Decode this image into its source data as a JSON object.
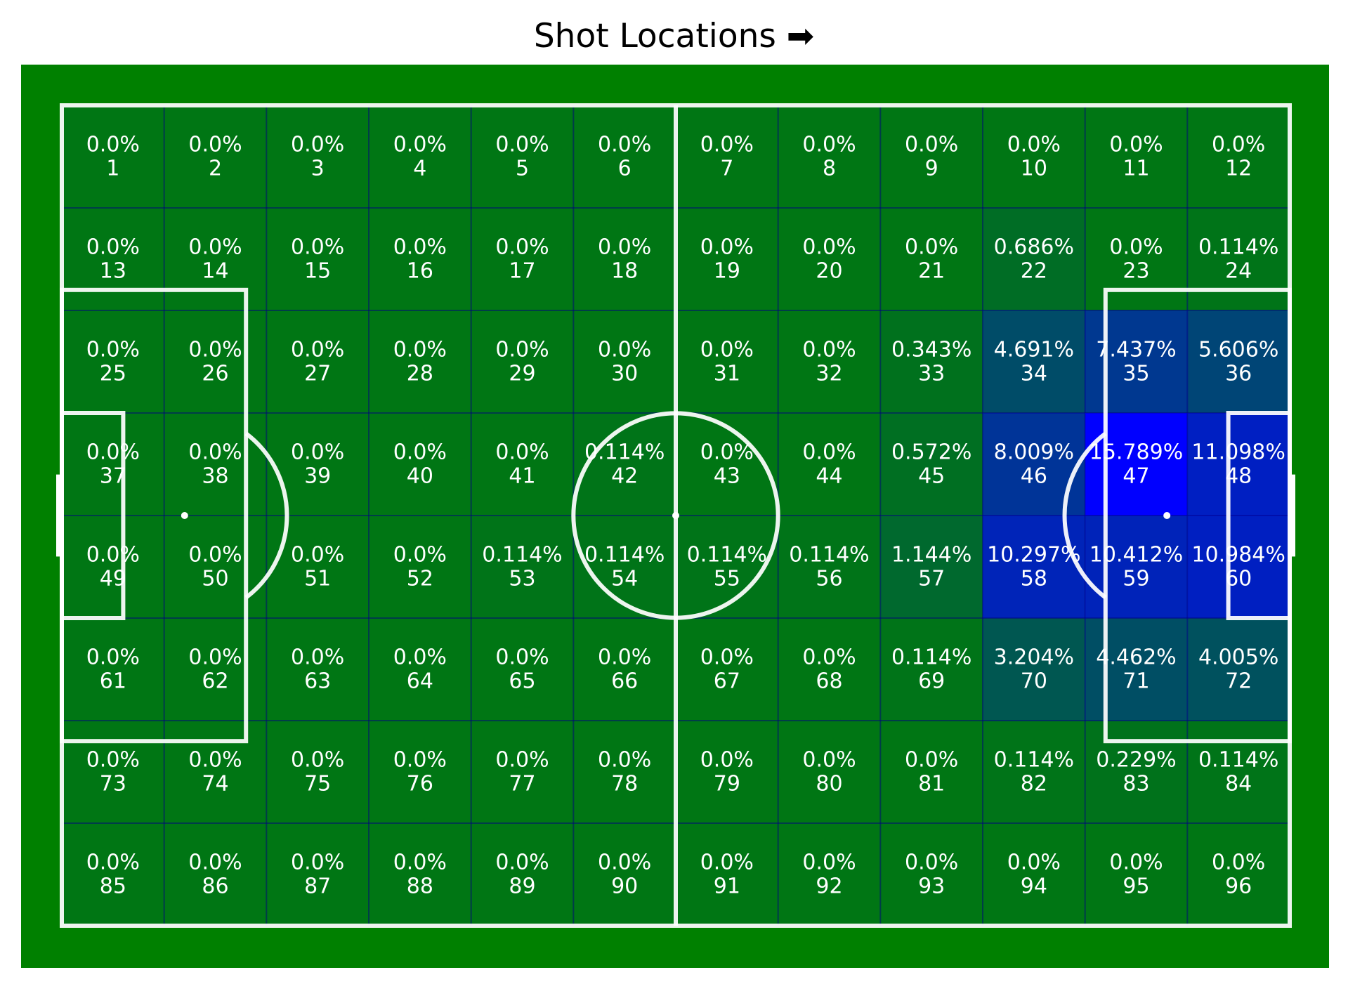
{
  "chart_data": {
    "type": "heatmap",
    "title": "Shot Locations ➡",
    "rows": 8,
    "cols": 12,
    "colors": {
      "pitch": "#008000",
      "lines": "#ffffff",
      "heat": "#0000ff"
    },
    "zones": [
      {
        "zone": "1",
        "pct": "0.0%"
      },
      {
        "zone": "2",
        "pct": "0.0%"
      },
      {
        "zone": "3",
        "pct": "0.0%"
      },
      {
        "zone": "4",
        "pct": "0.0%"
      },
      {
        "zone": "5",
        "pct": "0.0%"
      },
      {
        "zone": "6",
        "pct": "0.0%"
      },
      {
        "zone": "7",
        "pct": "0.0%"
      },
      {
        "zone": "8",
        "pct": "0.0%"
      },
      {
        "zone": "9",
        "pct": "0.0%"
      },
      {
        "zone": "10",
        "pct": "0.0%"
      },
      {
        "zone": "11",
        "pct": "0.0%"
      },
      {
        "zone": "12",
        "pct": "0.0%"
      },
      {
        "zone": "13",
        "pct": "0.0%"
      },
      {
        "zone": "14",
        "pct": "0.0%"
      },
      {
        "zone": "15",
        "pct": "0.0%"
      },
      {
        "zone": "16",
        "pct": "0.0%"
      },
      {
        "zone": "17",
        "pct": "0.0%"
      },
      {
        "zone": "18",
        "pct": "0.0%"
      },
      {
        "zone": "19",
        "pct": "0.0%"
      },
      {
        "zone": "20",
        "pct": "0.0%"
      },
      {
        "zone": "21",
        "pct": "0.0%"
      },
      {
        "zone": "22",
        "pct": "0.686%"
      },
      {
        "zone": "23",
        "pct": "0.0%"
      },
      {
        "zone": "24",
        "pct": "0.114%"
      },
      {
        "zone": "25",
        "pct": "0.0%"
      },
      {
        "zone": "26",
        "pct": "0.0%"
      },
      {
        "zone": "27",
        "pct": "0.0%"
      },
      {
        "zone": "28",
        "pct": "0.0%"
      },
      {
        "zone": "29",
        "pct": "0.0%"
      },
      {
        "zone": "30",
        "pct": "0.0%"
      },
      {
        "zone": "31",
        "pct": "0.0%"
      },
      {
        "zone": "32",
        "pct": "0.0%"
      },
      {
        "zone": "33",
        "pct": "0.343%"
      },
      {
        "zone": "34",
        "pct": "4.691%"
      },
      {
        "zone": "35",
        "pct": "7.437%"
      },
      {
        "zone": "36",
        "pct": "5.606%"
      },
      {
        "zone": "37",
        "pct": "0.0%"
      },
      {
        "zone": "38",
        "pct": "0.0%"
      },
      {
        "zone": "39",
        "pct": "0.0%"
      },
      {
        "zone": "40",
        "pct": "0.0%"
      },
      {
        "zone": "41",
        "pct": "0.0%"
      },
      {
        "zone": "42",
        "pct": "0.114%"
      },
      {
        "zone": "43",
        "pct": "0.0%"
      },
      {
        "zone": "44",
        "pct": "0.0%"
      },
      {
        "zone": "45",
        "pct": "0.572%"
      },
      {
        "zone": "46",
        "pct": "8.009%"
      },
      {
        "zone": "47",
        "pct": "15.789%"
      },
      {
        "zone": "48",
        "pct": "11.098%"
      },
      {
        "zone": "49",
        "pct": "0.0%"
      },
      {
        "zone": "50",
        "pct": "0.0%"
      },
      {
        "zone": "51",
        "pct": "0.0%"
      },
      {
        "zone": "52",
        "pct": "0.0%"
      },
      {
        "zone": "53",
        "pct": "0.114%"
      },
      {
        "zone": "54",
        "pct": "0.114%"
      },
      {
        "zone": "55",
        "pct": "0.114%"
      },
      {
        "zone": "56",
        "pct": "0.114%"
      },
      {
        "zone": "57",
        "pct": "1.144%"
      },
      {
        "zone": "58",
        "pct": "10.297%"
      },
      {
        "zone": "59",
        "pct": "10.412%"
      },
      {
        "zone": "60",
        "pct": "10.984%"
      },
      {
        "zone": "61",
        "pct": "0.0%"
      },
      {
        "zone": "62",
        "pct": "0.0%"
      },
      {
        "zone": "63",
        "pct": "0.0%"
      },
      {
        "zone": "64",
        "pct": "0.0%"
      },
      {
        "zone": "65",
        "pct": "0.0%"
      },
      {
        "zone": "66",
        "pct": "0.0%"
      },
      {
        "zone": "67",
        "pct": "0.0%"
      },
      {
        "zone": "68",
        "pct": "0.0%"
      },
      {
        "zone": "69",
        "pct": "0.114%"
      },
      {
        "zone": "70",
        "pct": "3.204%"
      },
      {
        "zone": "71",
        "pct": "4.462%"
      },
      {
        "zone": "72",
        "pct": "4.005%"
      },
      {
        "zone": "73",
        "pct": "0.0%"
      },
      {
        "zone": "74",
        "pct": "0.0%"
      },
      {
        "zone": "75",
        "pct": "0.0%"
      },
      {
        "zone": "76",
        "pct": "0.0%"
      },
      {
        "zone": "77",
        "pct": "0.0%"
      },
      {
        "zone": "78",
        "pct": "0.0%"
      },
      {
        "zone": "79",
        "pct": "0.0%"
      },
      {
        "zone": "80",
        "pct": "0.0%"
      },
      {
        "zone": "81",
        "pct": "0.0%"
      },
      {
        "zone": "82",
        "pct": "0.114%"
      },
      {
        "zone": "83",
        "pct": "0.229%"
      },
      {
        "zone": "84",
        "pct": "0.114%"
      },
      {
        "zone": "85",
        "pct": "0.0%"
      },
      {
        "zone": "86",
        "pct": "0.0%"
      },
      {
        "zone": "87",
        "pct": "0.0%"
      },
      {
        "zone": "88",
        "pct": "0.0%"
      },
      {
        "zone": "89",
        "pct": "0.0%"
      },
      {
        "zone": "90",
        "pct": "0.0%"
      },
      {
        "zone": "91",
        "pct": "0.0%"
      },
      {
        "zone": "92",
        "pct": "0.0%"
      },
      {
        "zone": "93",
        "pct": "0.0%"
      },
      {
        "zone": "94",
        "pct": "0.0%"
      },
      {
        "zone": "95",
        "pct": "0.0%"
      },
      {
        "zone": "96",
        "pct": "0.0%"
      }
    ]
  }
}
